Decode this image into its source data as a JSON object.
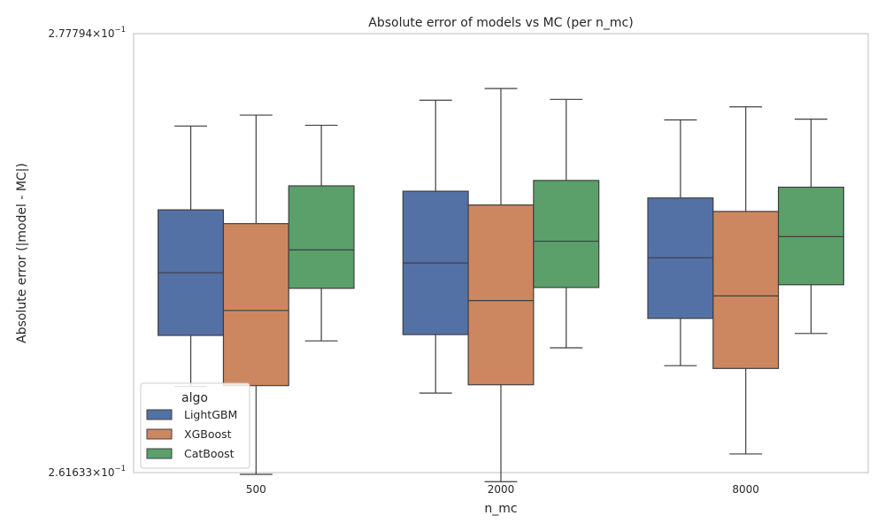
{
  "chart_data": {
    "type": "box",
    "title": "Absolute error of models vs MC (per n_mc)",
    "xlabel": "n_mc",
    "ylabel": "Absolute error (|model - MC|)",
    "yscale": "log",
    "ylim": [
      0.261633,
      0.277794
    ],
    "y_ticks": [
      {
        "value": 0.277794,
        "mantissa": "2.77794",
        "exponent": "−1"
      },
      {
        "value": 0.261633,
        "mantissa": "2.61633",
        "exponent": "−1"
      }
    ],
    "categories": [
      "500",
      "2000",
      "8000"
    ],
    "legend": {
      "title": "algo",
      "position": "lower-left"
    },
    "grid": false,
    "colors": {
      "LightGBM": "#5471a6",
      "XGBoost": "#cd8760",
      "CatBoost": "#5b9f6b",
      "line": "#3f3f3f",
      "frame": "#cccccc"
    },
    "series": [
      {
        "name": "LightGBM",
        "boxes": [
          {
            "whislo": 0.26473,
            "q1": 0.26658,
            "med": 0.26887,
            "q3": 0.27119,
            "whishi": 0.27431
          },
          {
            "whislo": 0.26449,
            "q1": 0.26661,
            "med": 0.26923,
            "q3": 0.27188,
            "whishi": 0.27528
          },
          {
            "whislo": 0.26548,
            "q1": 0.2672,
            "med": 0.26942,
            "q3": 0.27163,
            "whishi": 0.27454
          }
        ]
      },
      {
        "name": "XGBoost",
        "boxes": [
          {
            "whislo": 0.26157,
            "q1": 0.26476,
            "med": 0.26749,
            "q3": 0.27068,
            "whishi": 0.27472
          },
          {
            "whislo": 0.26131,
            "q1": 0.26479,
            "med": 0.26785,
            "q3": 0.27137,
            "whishi": 0.27572
          },
          {
            "whislo": 0.2623,
            "q1": 0.26538,
            "med": 0.26802,
            "q3": 0.27113,
            "whishi": 0.27503
          }
        ]
      },
      {
        "name": "CatBoost",
        "boxes": [
          {
            "whislo": 0.26638,
            "q1": 0.2683,
            "med": 0.26971,
            "q3": 0.27208,
            "whishi": 0.27434
          },
          {
            "whislo": 0.26613,
            "q1": 0.26833,
            "med": 0.27003,
            "q3": 0.27228,
            "whishi": 0.27531
          },
          {
            "whislo": 0.26665,
            "q1": 0.26843,
            "med": 0.2702,
            "q3": 0.27203,
            "whishi": 0.27457
          }
        ]
      }
    ]
  }
}
